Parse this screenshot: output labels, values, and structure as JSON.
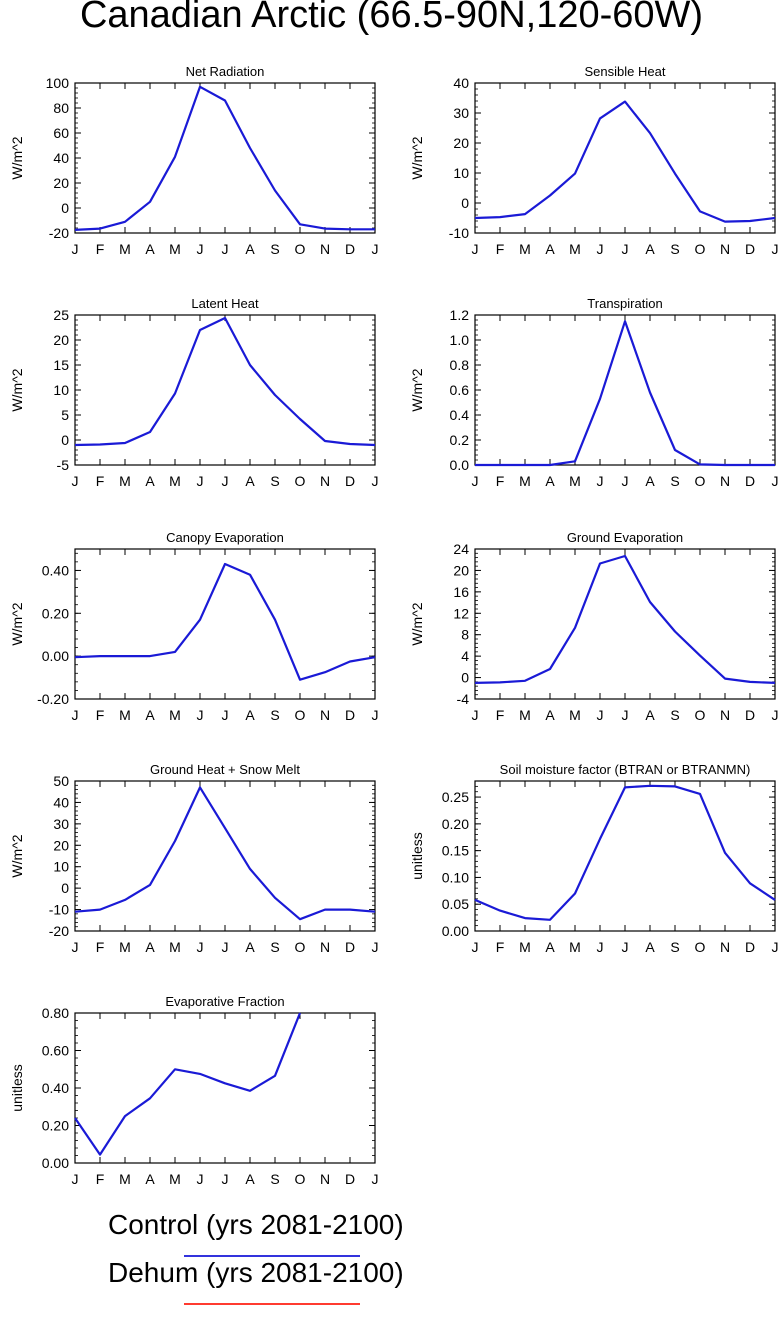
{
  "title": "Canadian Arctic (66.5-90N,120-60W)",
  "months": [
    "J",
    "F",
    "M",
    "A",
    "M",
    "J",
    "J",
    "A",
    "S",
    "O",
    "N",
    "D",
    "J"
  ],
  "colors": {
    "control": "#1a1ad6",
    "dehum": "#ff3b30"
  },
  "legend": [
    {
      "label": "Control (yrs 2081-2100)",
      "color": "#3333dd"
    },
    {
      "label": "Dehum (yrs 2081-2100)",
      "color": "#ff3b30"
    }
  ],
  "chart_data": [
    {
      "type": "line",
      "title": "Net Radiation",
      "ylabel": "W/m^2",
      "ylim": [
        -20,
        100
      ],
      "yticks": [
        -20,
        0,
        20,
        40,
        60,
        80,
        100
      ],
      "yticklabels": [
        "-20",
        "0",
        "20",
        "40",
        "60",
        "80",
        "100"
      ],
      "series": [
        {
          "values": [
            -17.5,
            -16.5,
            -11,
            5,
            41,
            97,
            86,
            48,
            14,
            -13,
            -16.5,
            -17,
            -17
          ]
        }
      ]
    },
    {
      "type": "line",
      "title": "Sensible Heat",
      "ylabel": "W/m^2",
      "ylim": [
        -10,
        40
      ],
      "yticks": [
        -10,
        0,
        10,
        20,
        30,
        40
      ],
      "yticklabels": [
        "-10",
        "0",
        "10",
        "20",
        "30",
        "40"
      ],
      "series": [
        {
          "values": [
            -5,
            -4.7,
            -3.7,
            2.5,
            9.8,
            28.2,
            33.8,
            23.3,
            9.8,
            -2.8,
            -6.2,
            -6,
            -5
          ]
        }
      ]
    },
    {
      "type": "line",
      "title": "Latent Heat",
      "ylabel": "W/m^2",
      "ylim": [
        -5,
        25
      ],
      "yticks": [
        -5,
        0,
        5,
        10,
        15,
        20,
        25
      ],
      "yticklabels": [
        "-5",
        "0",
        "5",
        "10",
        "15",
        "20",
        "25"
      ],
      "series": [
        {
          "values": [
            -1,
            -0.9,
            -0.6,
            1.6,
            9.3,
            22,
            24.4,
            15,
            9,
            4.2,
            -0.2,
            -0.8,
            -1
          ]
        }
      ]
    },
    {
      "type": "line",
      "title": "Transpiration",
      "ylabel": "W/m^2",
      "ylim": [
        0,
        1.2
      ],
      "yticks": [
        0,
        0.2,
        0.4,
        0.6,
        0.8,
        1.0,
        1.2
      ],
      "yticklabels": [
        "0.0",
        "0.2",
        "0.4",
        "0.6",
        "0.8",
        "1.0",
        "1.2"
      ],
      "series": [
        {
          "values": [
            0,
            0,
            0,
            0,
            0.03,
            0.53,
            1.15,
            0.58,
            0.12,
            0.005,
            0,
            0,
            0
          ]
        }
      ]
    },
    {
      "type": "line",
      "title": "Canopy Evaporation",
      "ylabel": "W/m^2",
      "ylim": [
        -0.2,
        0.5
      ],
      "yticks": [
        -0.2,
        0,
        0.2,
        0.4
      ],
      "yticklabels": [
        "-0.20",
        "0.00",
        "0.20",
        "0.40"
      ],
      "series": [
        {
          "values": [
            -0.005,
            0,
            0,
            0,
            0.02,
            0.17,
            0.43,
            0.38,
            0.17,
            -0.11,
            -0.075,
            -0.025,
            -0.005
          ]
        }
      ]
    },
    {
      "type": "line",
      "title": "Ground Evaporation",
      "ylabel": "W/m^2",
      "ylim": [
        -4,
        24
      ],
      "yticks": [
        -4,
        0,
        4,
        8,
        12,
        16,
        20,
        24
      ],
      "yticklabels": [
        "-4",
        "0",
        "4",
        "8",
        "12",
        "16",
        "20",
        "24"
      ],
      "series": [
        {
          "values": [
            -1,
            -0.9,
            -0.6,
            1.6,
            9.3,
            21.3,
            22.7,
            14.1,
            8.6,
            4.1,
            -0.2,
            -0.8,
            -1
          ]
        }
      ]
    },
    {
      "type": "line",
      "title": "Ground Heat + Snow Melt",
      "ylabel": "W/m^2",
      "ylim": [
        -20,
        50
      ],
      "yticks": [
        -20,
        -10,
        0,
        10,
        20,
        30,
        40,
        50
      ],
      "yticklabels": [
        "-20",
        "-10",
        "0",
        "10",
        "20",
        "30",
        "40",
        "50"
      ],
      "series": [
        {
          "values": [
            -11,
            -10,
            -5.5,
            1.5,
            22,
            47,
            28,
            9,
            -4.5,
            -14.5,
            -10,
            -10,
            -11
          ]
        }
      ]
    },
    {
      "type": "line",
      "title": "Soil moisture factor (BTRAN or BTRANMN)",
      "ylabel": "unitless",
      "ylim": [
        0,
        0.28
      ],
      "yticks": [
        0,
        0.05,
        0.1,
        0.15,
        0.2,
        0.25
      ],
      "yticklabels": [
        "0.00",
        "0.05",
        "0.10",
        "0.15",
        "0.20",
        "0.25"
      ],
      "series": [
        {
          "values": [
            0.058,
            0.038,
            0.024,
            0.021,
            0.07,
            0.172,
            0.268,
            0.271,
            0.27,
            0.256,
            0.146,
            0.089,
            0.058
          ]
        }
      ]
    },
    {
      "type": "line",
      "title": "Evaporative Fraction",
      "ylabel": "unitless",
      "ylim": [
        0,
        0.8
      ],
      "yticks": [
        0,
        0.2,
        0.4,
        0.6,
        0.8
      ],
      "yticklabels": [
        "0.00",
        "0.20",
        "0.40",
        "0.60",
        "0.80"
      ],
      "series": [
        {
          "values": [
            0.24,
            0.045,
            0.25,
            0.345,
            0.5,
            0.475,
            0.425,
            0.385,
            0.465,
            0.8,
            null,
            null,
            null
          ]
        }
      ]
    }
  ]
}
